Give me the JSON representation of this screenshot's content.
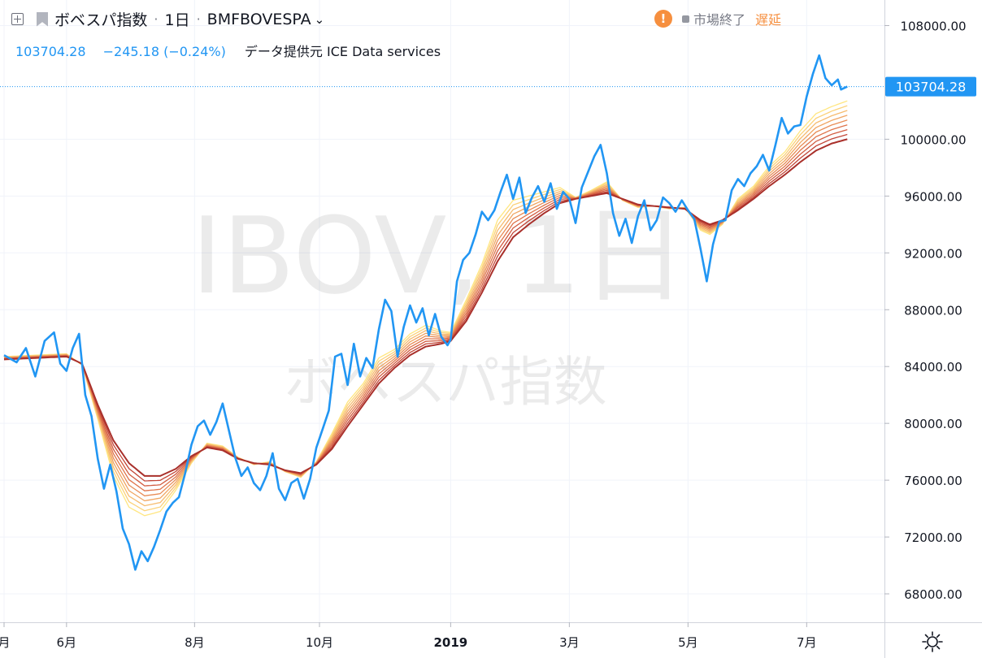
{
  "header": {
    "symbol_name": "ボベスパ指数",
    "interval": "1日",
    "exchange_symbol": "BMFBOVESPA",
    "last_price": "103704.28",
    "change": "−245.18 (−0.24%)",
    "data_provider": "データ提供元 ICE Data services",
    "market_status": "市場終了",
    "delay_label": "遅延"
  },
  "watermark": {
    "symbol": "IBOV, 1日",
    "name": "ボベスパ指数"
  },
  "price_label": "103704.28",
  "colors": {
    "price_line": "#2196f3",
    "ribbon": [
      "#ffe680",
      "#fbd27a",
      "#f6bb6e",
      "#f0a562",
      "#e88c56",
      "#df744b",
      "#d25c40",
      "#c24536",
      "#a9302b"
    ],
    "warning": "#f68f3f"
  },
  "chart_data": {
    "type": "line",
    "title": "",
    "xlabel": "",
    "ylabel": "",
    "ylim": [
      66000,
      109800
    ],
    "y_ticks": [
      "108000.00",
      "100000.00",
      "96000.00",
      "92000.00",
      "88000.00",
      "84000.00",
      "80000.00",
      "76000.00",
      "72000.00",
      "68000.00"
    ],
    "x_ticks": [
      {
        "label": "月",
        "x": 0
      },
      {
        "label": "6月",
        "x": 20
      },
      {
        "label": "8月",
        "x": 61
      },
      {
        "label": "10月",
        "x": 101
      },
      {
        "label": "2019",
        "x": 143
      },
      {
        "label": "3月",
        "x": 181
      },
      {
        "label": "5月",
        "x": 219
      },
      {
        "label": "7月",
        "x": 257
      }
    ],
    "x_range": [
      0,
      278
    ],
    "last_value": 103704.28,
    "series": [
      {
        "values": [
          [
            0,
            84800
          ],
          [
            4,
            84300
          ],
          [
            7,
            85300
          ],
          [
            10,
            83300
          ],
          [
            13,
            85800
          ],
          [
            16,
            86400
          ],
          [
            18,
            84200
          ],
          [
            20,
            83700
          ],
          [
            22,
            85300
          ],
          [
            24,
            86300
          ],
          [
            26,
            82000
          ],
          [
            28,
            80500
          ],
          [
            30,
            77500
          ],
          [
            32,
            75400
          ],
          [
            34,
            77100
          ],
          [
            36,
            75200
          ],
          [
            38,
            72600
          ],
          [
            40,
            71500
          ],
          [
            42,
            69700
          ],
          [
            44,
            71000
          ],
          [
            46,
            70300
          ],
          [
            48,
            71300
          ],
          [
            50,
            72500
          ],
          [
            52,
            73800
          ],
          [
            54,
            74400
          ],
          [
            56,
            74800
          ],
          [
            58,
            76500
          ],
          [
            60,
            78500
          ],
          [
            62,
            79800
          ],
          [
            64,
            80200
          ],
          [
            66,
            79200
          ],
          [
            68,
            80100
          ],
          [
            70,
            81400
          ],
          [
            72,
            79500
          ],
          [
            74,
            77600
          ],
          [
            76,
            76300
          ],
          [
            78,
            76900
          ],
          [
            80,
            75800
          ],
          [
            82,
            75300
          ],
          [
            84,
            76300
          ],
          [
            86,
            77900
          ],
          [
            88,
            75400
          ],
          [
            90,
            74600
          ],
          [
            92,
            75800
          ],
          [
            94,
            76100
          ],
          [
            96,
            74700
          ],
          [
            98,
            76100
          ],
          [
            100,
            78300
          ],
          [
            102,
            79600
          ],
          [
            104,
            80900
          ],
          [
            106,
            84700
          ],
          [
            108,
            84900
          ],
          [
            110,
            82700
          ],
          [
            112,
            85600
          ],
          [
            114,
            83300
          ],
          [
            116,
            84600
          ],
          [
            118,
            83900
          ],
          [
            120,
            86600
          ],
          [
            122,
            88700
          ],
          [
            124,
            87900
          ],
          [
            126,
            84700
          ],
          [
            128,
            86800
          ],
          [
            130,
            88300
          ],
          [
            132,
            87100
          ],
          [
            134,
            88100
          ],
          [
            136,
            86200
          ],
          [
            138,
            87700
          ],
          [
            140,
            86100
          ],
          [
            142,
            85500
          ],
          [
            143,
            85900
          ],
          [
            145,
            90000
          ],
          [
            147,
            91500
          ],
          [
            149,
            92000
          ],
          [
            151,
            93300
          ],
          [
            153,
            94900
          ],
          [
            155,
            94300
          ],
          [
            157,
            95000
          ],
          [
            159,
            96300
          ],
          [
            161,
            97500
          ],
          [
            163,
            95800
          ],
          [
            165,
            97300
          ],
          [
            167,
            94800
          ],
          [
            169,
            95900
          ],
          [
            171,
            96700
          ],
          [
            173,
            95600
          ],
          [
            175,
            96900
          ],
          [
            177,
            95100
          ],
          [
            179,
            96300
          ],
          [
            181,
            95800
          ],
          [
            183,
            94100
          ],
          [
            185,
            96600
          ],
          [
            187,
            97700
          ],
          [
            189,
            98800
          ],
          [
            191,
            99600
          ],
          [
            193,
            97600
          ],
          [
            195,
            94800
          ],
          [
            197,
            93200
          ],
          [
            199,
            94400
          ],
          [
            201,
            92700
          ],
          [
            203,
            94600
          ],
          [
            205,
            95700
          ],
          [
            207,
            93600
          ],
          [
            209,
            94300
          ],
          [
            211,
            95900
          ],
          [
            213,
            95500
          ],
          [
            215,
            94900
          ],
          [
            217,
            95700
          ],
          [
            219,
            95000
          ],
          [
            221,
            94400
          ],
          [
            223,
            92300
          ],
          [
            225,
            90000
          ],
          [
            227,
            92600
          ],
          [
            229,
            94200
          ],
          [
            231,
            94300
          ],
          [
            233,
            96400
          ],
          [
            235,
            97200
          ],
          [
            237,
            96700
          ],
          [
            239,
            97600
          ],
          [
            241,
            98100
          ],
          [
            243,
            98900
          ],
          [
            245,
            97800
          ],
          [
            247,
            99600
          ],
          [
            249,
            101500
          ],
          [
            251,
            100400
          ],
          [
            253,
            100900
          ],
          [
            255,
            101000
          ],
          [
            257,
            103000
          ],
          [
            259,
            104600
          ],
          [
            261,
            105900
          ],
          [
            263,
            104300
          ],
          [
            265,
            103800
          ],
          [
            267,
            104200
          ],
          [
            268,
            103500
          ],
          [
            270,
            103704.28
          ]
        ]
      },
      {
        "name": "",
        "values": [
          [
            0,
            84700
          ],
          [
            10,
            84800
          ],
          [
            20,
            84900
          ],
          [
            25,
            84100
          ],
          [
            30,
            80300
          ],
          [
            35,
            76300
          ],
          [
            40,
            74100
          ],
          [
            45,
            73500
          ],
          [
            50,
            73800
          ],
          [
            55,
            75300
          ],
          [
            60,
            77200
          ],
          [
            65,
            78600
          ],
          [
            70,
            78400
          ],
          [
            75,
            77600
          ],
          [
            80,
            77100
          ],
          [
            85,
            77300
          ],
          [
            90,
            76600
          ],
          [
            95,
            76200
          ],
          [
            100,
            77300
          ],
          [
            105,
            79300
          ],
          [
            110,
            81500
          ],
          [
            115,
            82800
          ],
          [
            120,
            84600
          ],
          [
            125,
            85200
          ],
          [
            130,
            86300
          ],
          [
            135,
            86900
          ],
          [
            140,
            86500
          ],
          [
            143,
            86400
          ],
          [
            148,
            88700
          ],
          [
            153,
            91200
          ],
          [
            158,
            94300
          ],
          [
            163,
            95700
          ],
          [
            168,
            96000
          ],
          [
            173,
            96300
          ],
          [
            178,
            96600
          ],
          [
            183,
            95900
          ],
          [
            188,
            96400
          ],
          [
            193,
            97000
          ],
          [
            198,
            95700
          ],
          [
            203,
            95200
          ],
          [
            208,
            95300
          ],
          [
            213,
            95100
          ],
          [
            218,
            95200
          ],
          [
            223,
            93600
          ],
          [
            226,
            93300
          ],
          [
            230,
            94000
          ],
          [
            235,
            95800
          ],
          [
            240,
            96700
          ],
          [
            245,
            98100
          ],
          [
            250,
            99100
          ],
          [
            255,
            100600
          ],
          [
            260,
            101800
          ],
          [
            265,
            102300
          ],
          [
            270,
            102700
          ]
        ]
      },
      {
        "name": "",
        "values": [
          [
            0,
            84500
          ],
          [
            10,
            84600
          ],
          [
            20,
            84700
          ],
          [
            25,
            84200
          ],
          [
            30,
            81300
          ],
          [
            35,
            78800
          ],
          [
            40,
            77200
          ],
          [
            45,
            76300
          ],
          [
            50,
            76300
          ],
          [
            55,
            76800
          ],
          [
            60,
            77700
          ],
          [
            65,
            78300
          ],
          [
            70,
            78100
          ],
          [
            75,
            77500
          ],
          [
            80,
            77200
          ],
          [
            85,
            77100
          ],
          [
            90,
            76700
          ],
          [
            95,
            76500
          ],
          [
            100,
            77100
          ],
          [
            105,
            78200
          ],
          [
            110,
            79800
          ],
          [
            115,
            81300
          ],
          [
            120,
            82800
          ],
          [
            125,
            83900
          ],
          [
            130,
            84800
          ],
          [
            135,
            85400
          ],
          [
            140,
            85600
          ],
          [
            143,
            85800
          ],
          [
            148,
            87200
          ],
          [
            153,
            89200
          ],
          [
            158,
            91400
          ],
          [
            163,
            93100
          ],
          [
            168,
            94000
          ],
          [
            173,
            94800
          ],
          [
            178,
            95500
          ],
          [
            183,
            95800
          ],
          [
            188,
            96000
          ],
          [
            193,
            96200
          ],
          [
            198,
            95800
          ],
          [
            203,
            95400
          ],
          [
            208,
            95300
          ],
          [
            213,
            95200
          ],
          [
            218,
            95100
          ],
          [
            223,
            94300
          ],
          [
            226,
            94000
          ],
          [
            230,
            94300
          ],
          [
            235,
            95000
          ],
          [
            240,
            95800
          ],
          [
            245,
            96700
          ],
          [
            250,
            97500
          ],
          [
            255,
            98400
          ],
          [
            260,
            99200
          ],
          [
            265,
            99700
          ],
          [
            270,
            100000
          ]
        ]
      }
    ]
  }
}
